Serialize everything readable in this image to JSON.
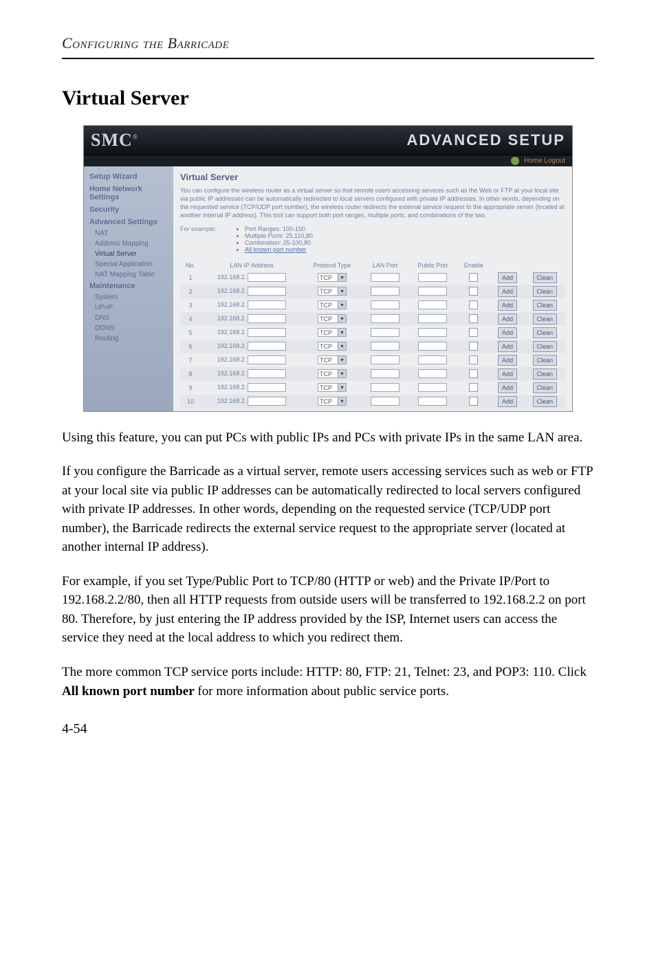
{
  "running_head": "Configuring the Barricade",
  "section_title": "Virtual Server",
  "screenshot": {
    "logo": "SMC",
    "advanced": "ADVANCED SETUP",
    "subbar": "Home  Logout",
    "nav": {
      "setup": "Setup Wizard",
      "home": "Home Network Settings",
      "security": "Security",
      "adv": "Advanced Settings",
      "adv_items": {
        "nat": "NAT",
        "addrmap": "Address Mapping",
        "vserver": "Virtual Server",
        "specapp": "Special Application",
        "natmap": "NAT Mapping Table"
      },
      "maint": "Maintenance",
      "system": "System",
      "upnp": "UPnP",
      "dns": "DNS",
      "ddns": "DDNS",
      "routing": "Routing"
    },
    "panel": {
      "title": "Virtual Server",
      "desc": "You can configure the wireless router as a virtual server so that remote users accessing services such as the Web or FTP at your local site via public IP addresses can be automatically redirected to local servers configured with private IP addresses. In other words, depending on the requested service (TCP/UDP port number), the wireless router redirects the external service request to the appropriate server (located at another internal IP address). This tool can support both port ranges, multiple ports, and combinations of the two.",
      "example_label": "For example:",
      "example_items": {
        "a": "Port Ranges: 100-150",
        "b": "Multiple Ports: 25,110,80",
        "c": "Combination: 25-100,80"
      },
      "example_link": "All known port number",
      "headers": {
        "no": "No.",
        "lanip": "LAN IP Address",
        "ptype": "Protocol Type",
        "lanport": "LAN Port",
        "pubport": "Public Port",
        "enable": "Enable"
      },
      "ip_prefix": "192.168.2.",
      "proto_default": "TCP",
      "add_btn": "Add",
      "clean_btn": "Clean",
      "rows": [
        1,
        2,
        3,
        4,
        5,
        6,
        7,
        8,
        9,
        10
      ]
    }
  },
  "para1": "Using this feature, you can put PCs with public IPs and PCs with private IPs in the same LAN area.",
  "para2": "If you configure the Barricade as a virtual server, remote users accessing services such as web or FTP at your local site via public IP addresses can be automatically redirected to local servers configured with private IP addresses. In other words, depending on the requested service (TCP/UDP port number), the Barricade redirects the external service request to the appropriate server (located at another internal IP address).",
  "para3": "For example, if you set Type/Public Port to TCP/80 (HTTP or web) and the Private IP/Port to 192.168.2.2/80, then all HTTP requests from outside users will be transferred to 192.168.2.2 on port 80. Therefore, by just entering the IP address provided by the ISP, Internet users can access the service they need at the local address to which you redirect them.",
  "para4_a": "The more common TCP service ports include: HTTP: 80, FTP: 21, Telnet: 23, and POP3: 110. Click ",
  "para4_bold": "All known port number",
  "para4_b": " for more information about public service ports.",
  "page_number": "4-54"
}
